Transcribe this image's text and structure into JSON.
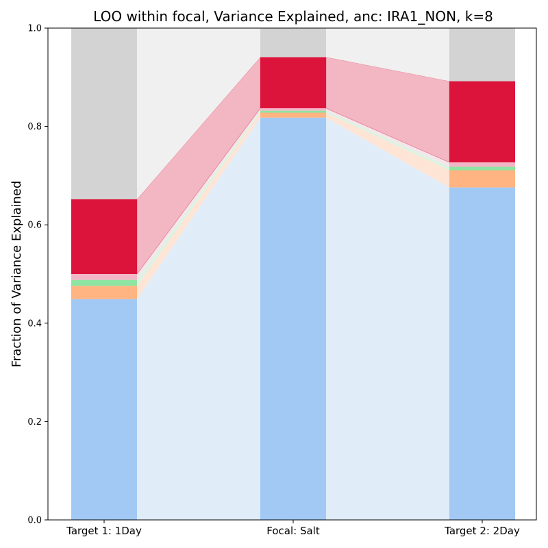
{
  "chart_data": {
    "type": "bar",
    "title": "LOO within focal, Variance Explained, anc: IRA1_NON, k=8",
    "xlabel": "",
    "ylabel": "Fraction of Variance Explained",
    "ylim": [
      0,
      1
    ],
    "grid": false,
    "legend": "none",
    "categories": [
      "Target 1: 1Day",
      "Focal: Salt",
      "Target 2: 2Day"
    ],
    "yticks": [
      "0.0",
      "0.2",
      "0.4",
      "0.6",
      "0.8",
      "1.0"
    ],
    "series": [
      {
        "color": "#a1c9f4",
        "band_color": "#e1ecf9",
        "values": [
          0.449,
          0.818,
          0.676
        ]
      },
      {
        "color": "#ffb482",
        "band_color": "#fde4d4",
        "values": [
          0.027,
          0.01,
          0.035
        ]
      },
      {
        "color": "#8de5a1",
        "band_color": "#dcf3e2",
        "values": [
          0.012,
          0.004,
          0.007
        ]
      },
      {
        "color": "#f2b6c6",
        "band_color": "#f4e6ea",
        "values": [
          0.012,
          0.005,
          0.009
        ]
      },
      {
        "color": "#dc143c",
        "band_color": "#f3b7c3",
        "values": [
          0.152,
          0.104,
          0.165
        ]
      },
      {
        "color": "#d3d3d3",
        "band_color": "#f0f0f0",
        "values": [
          0.348,
          0.059,
          0.108
        ]
      }
    ]
  }
}
